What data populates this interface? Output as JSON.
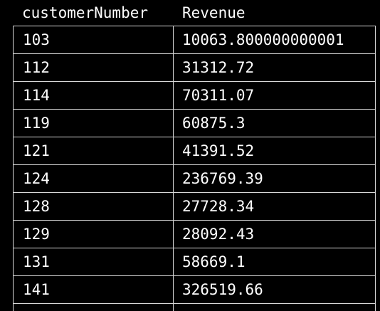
{
  "table": {
    "columns": [
      "customerNumber",
      "Revenue"
    ],
    "rows": [
      {
        "customerNumber": "103",
        "Revenue": "10063.800000000001"
      },
      {
        "customerNumber": "112",
        "Revenue": "31312.72"
      },
      {
        "customerNumber": "114",
        "Revenue": "70311.07"
      },
      {
        "customerNumber": "119",
        "Revenue": "60875.3"
      },
      {
        "customerNumber": "121",
        "Revenue": "41391.52"
      },
      {
        "customerNumber": "124",
        "Revenue": "236769.39"
      },
      {
        "customerNumber": "128",
        "Revenue": "27728.34"
      },
      {
        "customerNumber": "129",
        "Revenue": "28092.43"
      },
      {
        "customerNumber": "131",
        "Revenue": "58669.1"
      },
      {
        "customerNumber": "141",
        "Revenue": "326519.66"
      }
    ]
  },
  "colors": {
    "background": "#000000",
    "text": "#ffffff",
    "grid": "#d8d8d8"
  }
}
